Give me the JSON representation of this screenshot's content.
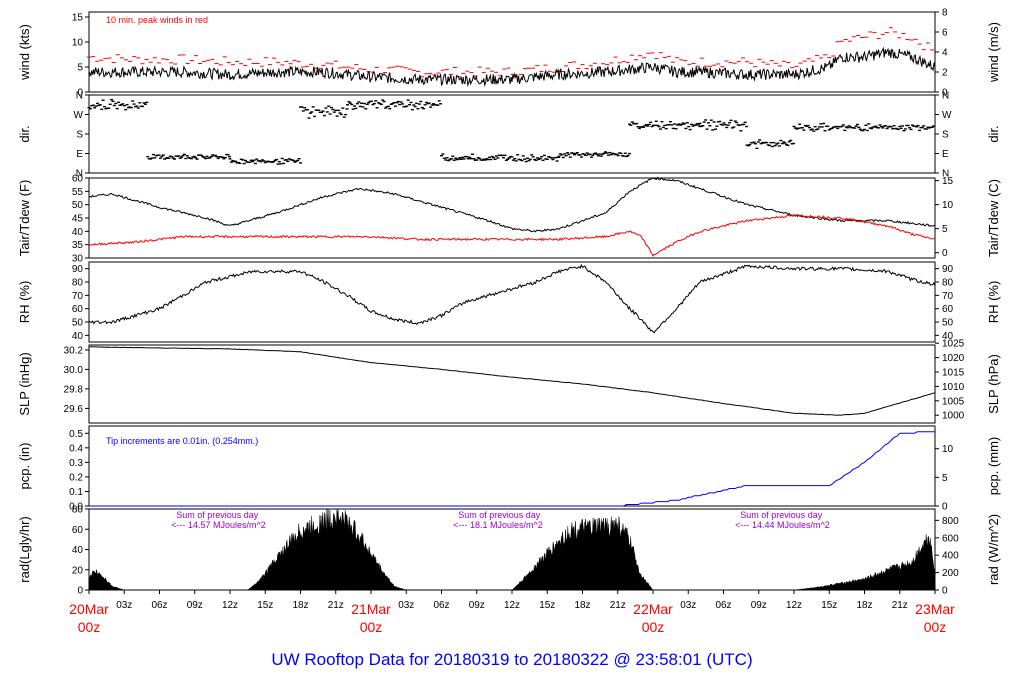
{
  "footer": {
    "title": "UW Rooftop Data for 20180319  to  20180322 @ 23:58:01  (UTC)"
  },
  "colors": {
    "wind": "#000000",
    "peak": "#ff0000",
    "tair": "#000000",
    "tdew": "#ff0000",
    "pcp": "#0000ff",
    "annotation_pcp": "#0000ff",
    "annotation_rad": "#9900cc",
    "day_label": "#ff0000",
    "axis": "#000000"
  },
  "x_axis": {
    "hour_ticks": [
      "03z",
      "06z",
      "09z",
      "12z",
      "15z",
      "18z",
      "21z",
      "03z",
      "06z",
      "09z",
      "12z",
      "15z",
      "18z",
      "21z",
      "03z",
      "06z",
      "09z",
      "12z",
      "15z",
      "18z",
      "21z"
    ],
    "hour_tick_positions_hours": [
      3,
      6,
      9,
      12,
      15,
      18,
      21,
      27,
      30,
      33,
      36,
      39,
      42,
      45,
      51,
      54,
      57,
      60,
      63,
      66,
      69
    ],
    "day_labels": [
      {
        "date": "20Mar",
        "time": "00z",
        "hours": 0
      },
      {
        "date": "21Mar",
        "time": "00z",
        "hours": 24
      },
      {
        "date": "22Mar",
        "time": "00z",
        "hours": 48
      },
      {
        "date": "23Mar",
        "time": "00z",
        "hours": 72
      }
    ],
    "range_hours": [
      0,
      72
    ]
  },
  "chart_data": [
    {
      "type": "line",
      "panel": "wind",
      "ylabel_left": "wind (kts)",
      "ylabel_right": "wind (m/s)",
      "ylim": [
        0,
        16
      ],
      "yticks_left": [
        0,
        5,
        10,
        15
      ],
      "ylim_right": [
        0,
        8
      ],
      "yticks_right": [
        0,
        2,
        4,
        6,
        8
      ],
      "annotation": "10 min. peak winds in red",
      "series": [
        {
          "name": "10 min. peak winds",
          "color": "#ff0000",
          "x": [
            0,
            4,
            8,
            12,
            16,
            20,
            24,
            28,
            32,
            36,
            40,
            44,
            48,
            50,
            52,
            56,
            60,
            63,
            64,
            66,
            68,
            70,
            72
          ],
          "values": [
            7,
            6.5,
            6.5,
            6,
            6,
            5.5,
            4.5,
            4,
            4,
            4,
            5,
            6,
            8,
            6,
            6,
            6,
            5,
            7,
            10,
            11,
            12,
            11,
            8
          ]
        },
        {
          "color": "#000000",
          "x": [
            0,
            4,
            8,
            12,
            16,
            20,
            24,
            28,
            32,
            36,
            40,
            44,
            48,
            50,
            52,
            56,
            60,
            63,
            64,
            66,
            68,
            70,
            72
          ],
          "values": [
            4,
            4,
            4,
            3.5,
            4,
            4,
            3,
            2.5,
            2.5,
            2.5,
            3.5,
            4,
            5,
            4,
            4,
            3.5,
            3.5,
            5,
            7,
            7,
            8,
            7,
            5
          ]
        }
      ]
    },
    {
      "type": "scatter",
      "panel": "dir",
      "ylabel_left": "dir.",
      "ylabel_right": "dir.",
      "yticks": [
        "N",
        "E",
        "S",
        "W",
        "N"
      ],
      "ylim": [
        0,
        360
      ],
      "tick_values": [
        0,
        90,
        180,
        270,
        360
      ],
      "segments": [
        {
          "x": [
            0,
            5
          ],
          "values": [
            300,
            330
          ]
        },
        {
          "x": [
            5,
            12
          ],
          "values": [
            70,
            80
          ]
        },
        {
          "x": [
            12,
            18
          ],
          "values": [
            50,
            60
          ]
        },
        {
          "x": [
            18,
            22
          ],
          "values": [
            260,
            310
          ]
        },
        {
          "x": [
            22,
            30
          ],
          "values": [
            300,
            330
          ]
        },
        {
          "x": [
            30,
            40
          ],
          "values": [
            60,
            80
          ]
        },
        {
          "x": [
            40,
            46
          ],
          "values": [
            80,
            90
          ]
        },
        {
          "x": [
            46,
            52
          ],
          "values": [
            210,
            230
          ]
        },
        {
          "x": [
            52,
            56
          ],
          "values": [
            200,
            240
          ]
        },
        {
          "x": [
            56,
            60
          ],
          "values": [
            120,
            150
          ]
        },
        {
          "x": [
            60,
            72
          ],
          "values": [
            200,
            220
          ]
        }
      ]
    },
    {
      "type": "line",
      "panel": "temp",
      "ylabel_left": "Tair/Tdew (F)",
      "ylabel_right": "Tair/Tdew (C)",
      "ylim": [
        30,
        60
      ],
      "yticks_left": [
        30,
        35,
        40,
        45,
        50,
        55,
        60
      ],
      "yticks_right": [
        0,
        5,
        10,
        15
      ],
      "series": [
        {
          "name": "Tair",
          "color": "#000000",
          "x": [
            0,
            2,
            6,
            10,
            12,
            16,
            20,
            23,
            26,
            30,
            34,
            36,
            38,
            40,
            44,
            46,
            48,
            50,
            52,
            56,
            60,
            64,
            68,
            70,
            72
          ],
          "values": [
            53,
            54,
            49,
            45,
            42,
            47,
            53,
            56,
            54,
            49,
            44,
            41,
            40,
            41,
            47,
            55,
            60,
            59,
            56,
            50,
            46,
            44,
            44,
            43,
            42
          ]
        },
        {
          "name": "Tdew",
          "color": "#ff0000",
          "x": [
            0,
            4,
            8,
            12,
            16,
            20,
            24,
            28,
            32,
            36,
            40,
            44,
            46,
            47,
            48,
            50,
            52,
            56,
            60,
            64,
            68,
            70,
            72
          ],
          "values": [
            35,
            36,
            38,
            38,
            38,
            38,
            38,
            37,
            37,
            37,
            37,
            38,
            40,
            38,
            31,
            36,
            40,
            44,
            46,
            45,
            42,
            39,
            37
          ]
        }
      ]
    },
    {
      "type": "line",
      "panel": "rh",
      "ylabel_left": "RH (%)",
      "ylabel_right": "RH (%)",
      "ylim": [
        35,
        95
      ],
      "yticks": [
        40,
        50,
        60,
        70,
        80,
        90
      ],
      "series": [
        {
          "color": "#000000",
          "x": [
            0,
            2,
            6,
            10,
            14,
            18,
            20,
            22,
            24,
            26,
            28,
            30,
            32,
            36,
            38,
            40,
            42,
            44,
            46,
            47,
            48,
            50,
            52,
            56,
            60,
            64,
            68,
            70,
            72
          ],
          "values": [
            50,
            50,
            60,
            80,
            88,
            88,
            80,
            70,
            58,
            52,
            49,
            55,
            65,
            75,
            80,
            88,
            92,
            80,
            60,
            52,
            42,
            60,
            80,
            92,
            90,
            90,
            88,
            82,
            78
          ]
        }
      ]
    },
    {
      "type": "line",
      "panel": "slp",
      "ylabel_left": "SLP (inHg)",
      "ylabel_right": "SLP (hPa)",
      "ylim": [
        29.45,
        30.25
      ],
      "yticks_left": [
        29.6,
        29.8,
        30.0,
        30.2
      ],
      "yticks_right": [
        1000,
        1005,
        1010,
        1015,
        1020,
        1025
      ],
      "series": [
        {
          "color": "#000000",
          "x": [
            0,
            6,
            12,
            18,
            24,
            30,
            36,
            42,
            48,
            54,
            60,
            64,
            66,
            72
          ],
          "values": [
            30.23,
            30.22,
            30.21,
            30.18,
            30.07,
            30.0,
            29.92,
            29.85,
            29.76,
            29.65,
            29.55,
            29.53,
            29.55,
            29.76
          ]
        }
      ]
    },
    {
      "type": "line",
      "panel": "pcp",
      "ylabel_left": "pcp. (in)",
      "ylabel_right": "pcp. (mm)",
      "ylim": [
        0,
        0.55
      ],
      "yticks_left": [
        0.0,
        0.1,
        0.2,
        0.3,
        0.4,
        0.5
      ],
      "yticks_right": [
        0,
        5,
        10
      ],
      "annotation": "Tip increments are 0.01in. (0.254mm.)",
      "series": [
        {
          "color": "#0000ff",
          "x": [
            0,
            45,
            50,
            56,
            63,
            66,
            69,
            72
          ],
          "values": [
            0,
            0,
            0.04,
            0.14,
            0.14,
            0.3,
            0.5,
            0.51
          ]
        }
      ]
    },
    {
      "type": "area",
      "panel": "rad",
      "ylabel_left": "rad(Lgly/hr)",
      "ylabel_right": "rad (W/m^2)",
      "ylim": [
        0,
        80
      ],
      "yticks_left": [
        0,
        20,
        40,
        60,
        80
      ],
      "yticks_right": [
        0,
        200,
        400,
        600,
        800
      ],
      "annotations": [
        {
          "text": "Sum of previous day",
          "x": 7
        },
        {
          "text": "<--- 14.57 MJoules/m^2",
          "x": 7
        },
        {
          "text": "Sum of previous day",
          "x": 31
        },
        {
          "text": "<--- 18.1 MJoules/m^2",
          "x": 31
        },
        {
          "text": "Sum of previous day",
          "x": 55
        },
        {
          "text": "<--- 14.44 MJoules/m^2",
          "x": 55
        }
      ],
      "series": [
        {
          "color": "#000000",
          "x": [
            0,
            0.5,
            1,
            1.5,
            2,
            3,
            13.5,
            14.5,
            16,
            18,
            20,
            21,
            22,
            23,
            25,
            26,
            27,
            36,
            37,
            39,
            41,
            44,
            45,
            46,
            47,
            47.5,
            48,
            60,
            62,
            66,
            68,
            70,
            71,
            71.5,
            72
          ],
          "values": [
            15,
            20,
            18,
            10,
            4,
            0,
            0,
            10,
            35,
            65,
            75,
            80,
            75,
            60,
            20,
            4,
            0,
            0,
            12,
            40,
            65,
            70,
            72,
            55,
            15,
            8,
            0,
            0,
            3,
            12,
            22,
            30,
            50,
            60,
            20
          ]
        }
      ]
    }
  ]
}
